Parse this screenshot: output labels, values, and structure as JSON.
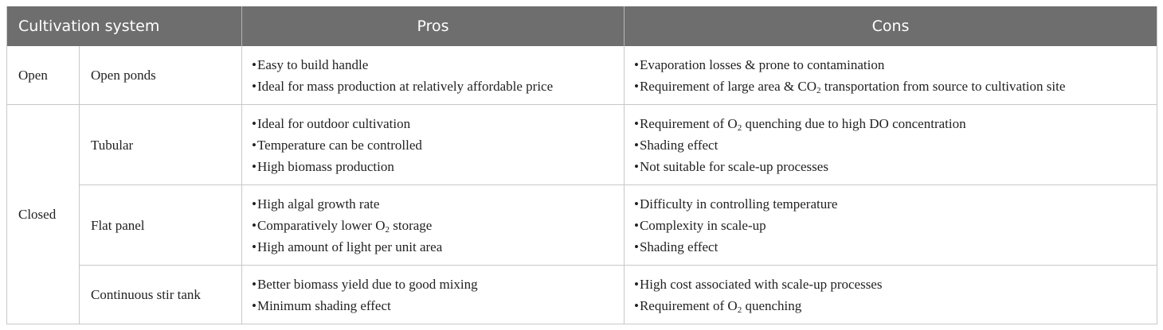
{
  "header": {
    "col1": "Cultivation system",
    "col2": "Pros",
    "col3": "Cons"
  },
  "rows": [
    {
      "category": "Open",
      "system": "Open ponds",
      "pros": [
        "Easy to build handle",
        "Ideal for mass production at relatively affordable price"
      ],
      "cons": [
        "Evaporation losses & prone to contamination",
        "Requirement of large area & CO<sub>2</sub> transportation from source to cultivation site"
      ]
    },
    {
      "category": "Closed",
      "system": "Tubular",
      "pros": [
        "Ideal for outdoor cultivation",
        "Temperature can be controlled",
        "High biomass production"
      ],
      "cons": [
        "Requirement of O<sub>2</sub> quenching due to high DO concentration",
        "Shading effect",
        "Not suitable for scale-up processes"
      ]
    },
    {
      "system": "Flat panel",
      "pros": [
        "High algal growth rate",
        "Comparatively lower O<sub>2</sub> storage",
        "High amount of light per unit area"
      ],
      "cons": [
        "Difficulty in controlling temperature",
        "Complexity in scale-up",
        "Shading effect"
      ]
    },
    {
      "system": "Continuous stir tank",
      "pros": [
        "Better biomass yield due to good mixing",
        "Minimum shading effect"
      ],
      "cons": [
        "High cost associated with scale-up processes",
        "Requirement of O<sub>2</sub> quenching"
      ]
    }
  ]
}
